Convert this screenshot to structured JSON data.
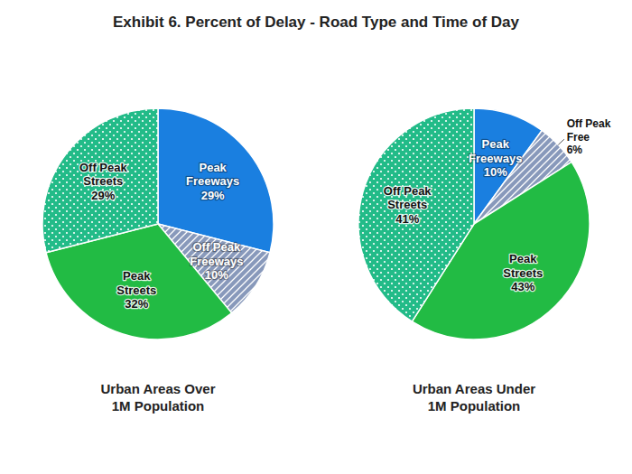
{
  "title": "Exhibit 6.  Percent of Delay - Road Type and Time of Day",
  "chart_data": [
    {
      "type": "pie",
      "title": "Urban Areas Over\n1M Population",
      "categories": [
        "Peak\nFreeways",
        "Off Peak\nFreeways",
        "Peak\nStreets",
        "Off Peak\nStreets"
      ],
      "values": [
        29,
        10,
        32,
        29
      ],
      "value_labels": [
        "29%",
        "10%",
        "32%",
        "29%"
      ],
      "colors": [
        "#1A7FE0",
        "#8899BB",
        "#22BB44",
        "#22BB88"
      ],
      "data_labels": true
    },
    {
      "type": "pie",
      "title": "Urban Areas Under\n1M Population",
      "categories": [
        "Peak\nFreeways",
        "Off Peak\nFree",
        "Peak\nStreets",
        "Off Peak\nStreets"
      ],
      "values": [
        10,
        6,
        43,
        41
      ],
      "value_labels": [
        "10%",
        "6%",
        "43%",
        "41%"
      ],
      "colors": [
        "#1A7FE0",
        "#8899BB",
        "#22BB44",
        "#22BB88"
      ],
      "data_labels": true
    }
  ]
}
